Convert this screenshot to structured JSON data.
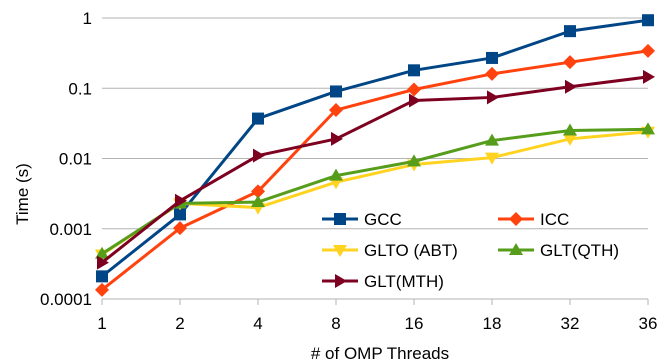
{
  "chart_data": {
    "type": "line",
    "xlabel": "# of OMP Threads",
    "ylabel": "Time (s)",
    "y_scale": "log",
    "ylim": [
      0.0001,
      1
    ],
    "y_ticks": [
      "0.0001",
      "0.001",
      "0.01",
      "0.1",
      "1"
    ],
    "grid": "horizontal",
    "legend_position": "lower-right inside",
    "categories": [
      "1",
      "2",
      "4",
      "8",
      "16",
      "18",
      "32",
      "36"
    ],
    "series": [
      {
        "name": "GCC",
        "color": "#004586",
        "marker": "square",
        "values": [
          0.00021,
          0.0016,
          0.037,
          0.09,
          0.18,
          0.27,
          0.65,
          0.93
        ]
      },
      {
        "name": "ICC",
        "color": "#ff420e",
        "marker": "diamond",
        "values": [
          0.000135,
          0.00102,
          0.0034,
          0.049,
          0.096,
          0.16,
          0.235,
          0.34
        ]
      },
      {
        "name": "GLTO (ABT)",
        "color": "#ffd320",
        "marker": "triangle-down",
        "values": [
          0.00043,
          0.0023,
          0.002,
          0.0046,
          0.0082,
          0.0103,
          0.019,
          0.024
        ]
      },
      {
        "name": "GLT(QTH)",
        "color": "#579d1c",
        "marker": "triangle-up",
        "values": [
          0.00044,
          0.0023,
          0.0024,
          0.0057,
          0.0091,
          0.018,
          0.025,
          0.026
        ]
      },
      {
        "name": "GLT(MTH)",
        "color": "#7e0021",
        "marker": "triangle-right",
        "values": [
          0.00033,
          0.0025,
          0.011,
          0.019,
          0.067,
          0.074,
          0.105,
          0.145
        ]
      }
    ]
  }
}
